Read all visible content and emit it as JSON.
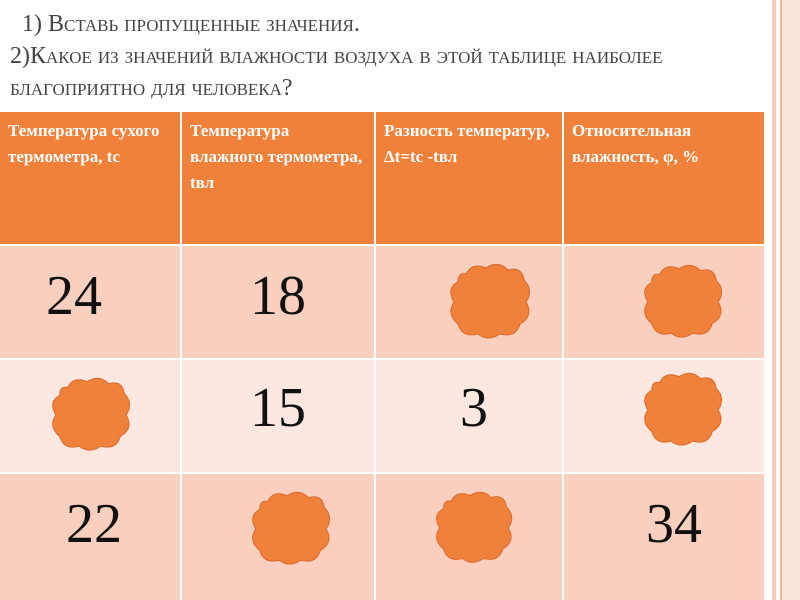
{
  "title": {
    "line1": "1) Вставь пропущенные значения.",
    "line2": "2)Какое из  значений влажности воздуха в этой таблице наиболее",
    "line3": "благоприятно для человека?"
  },
  "table": {
    "headers": [
      "Температура сухого термометра, tс",
      "Температура влажного термометра, tвл",
      "Разность температур, Δt=tс -tвл",
      "Относительная влажность, φ, %"
    ],
    "rows": [
      [
        "24",
        "18",
        "",
        ""
      ],
      [
        "",
        "15",
        "3",
        ""
      ],
      [
        "22",
        "",
        "",
        "34"
      ]
    ]
  },
  "colors": {
    "header_bg": "#f0813a",
    "row_dark": "#f9cfc0",
    "row_light": "#fce8e1",
    "blob": "#f0813a"
  }
}
